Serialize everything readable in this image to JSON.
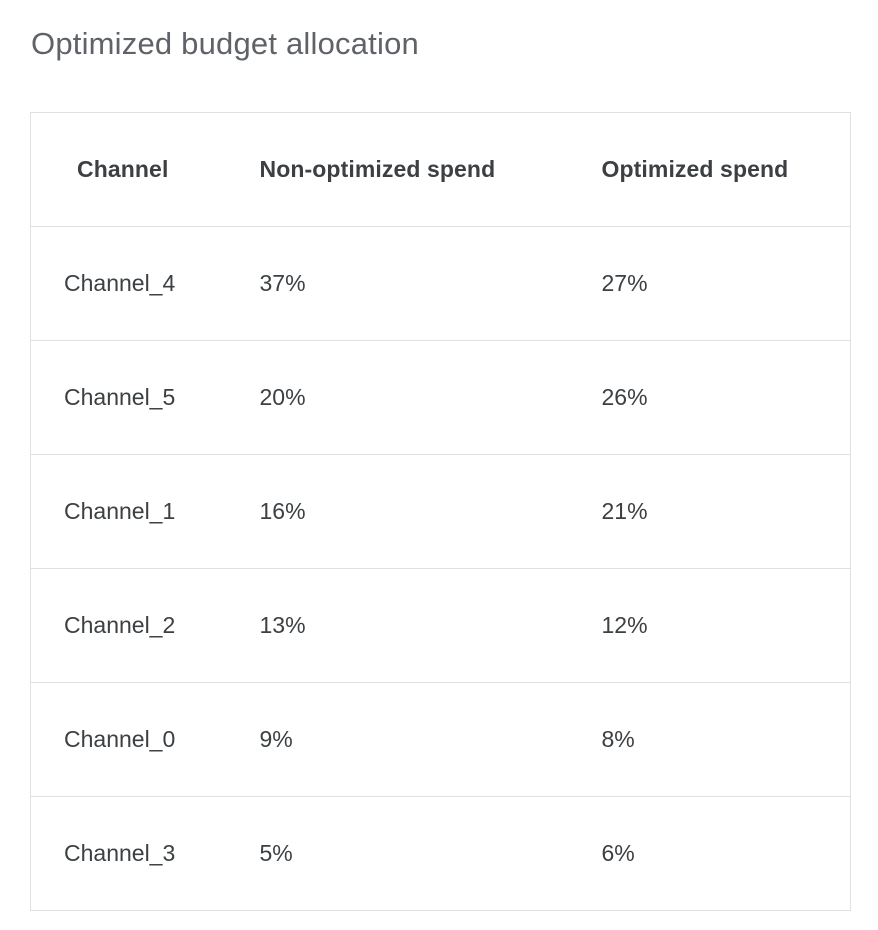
{
  "page": {
    "title": "Optimized budget allocation"
  },
  "colors": {
    "title_text": "#5f6368",
    "table_text": "#3c4043",
    "border": "#e0e0e0",
    "background": "#ffffff"
  },
  "chart_data": {
    "type": "table",
    "title": "Optimized budget allocation",
    "columns": [
      "Channel",
      "Non-optimized spend",
      "Optimized spend"
    ],
    "rows": [
      [
        "Channel_4",
        "37%",
        "27%"
      ],
      [
        "Channel_5",
        "20%",
        "26%"
      ],
      [
        "Channel_1",
        "16%",
        "21%"
      ],
      [
        "Channel_2",
        "13%",
        "12%"
      ],
      [
        "Channel_0",
        "9%",
        "8%"
      ],
      [
        "Channel_3",
        "5%",
        "6%"
      ]
    ],
    "layout_hints": {
      "grid": "horizontal row separators",
      "header_style": "bold",
      "alignment": "left"
    }
  }
}
